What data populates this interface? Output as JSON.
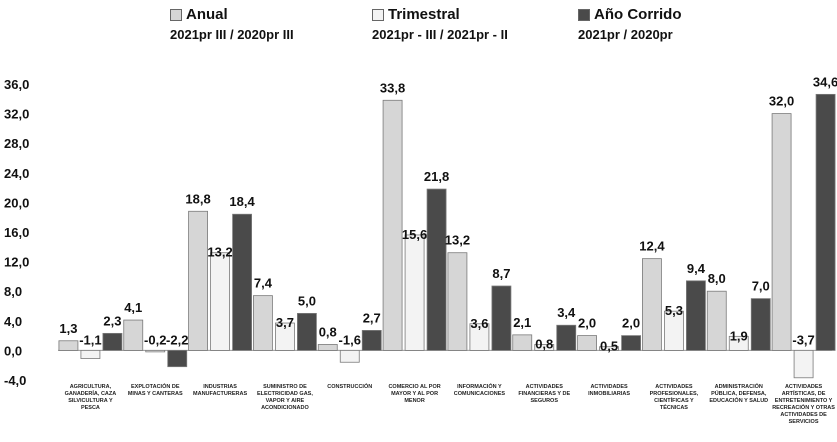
{
  "chart_data": {
    "type": "bar",
    "ylim": [
      -4,
      36
    ],
    "yticks": [
      "36,0",
      "32,0",
      "28,0",
      "24,0",
      "20,0",
      "16,0",
      "12,0",
      "8,0",
      "4,0",
      "0,0",
      "-4,0"
    ],
    "categories": [
      "AGRICULTURA, GANADERÍA, CAZA SILVICULTURA Y PESCA",
      "EXPLOTACIÓN DE MINAS Y CANTERAS",
      "INDUSTRIAS MANUFACTURERAS",
      "SUMINISTRO DE ELECTRICIDAD GAS, VAPOR Y AIRE ACONDICIONADO",
      "CONSTRUCCIÓN",
      "COMERCIO AL POR MAYOR Y AL POR MENOR",
      "INFORMACIÓN Y COMUNICACIONES",
      "ACTIVIDADES FINANCIERAS Y DE SEGUROS",
      "ACTIVIDADES INMOBILIARIAS",
      "ACTIVIDADES PROFESIONALES, CIENTÍFICAS Y TÉCNICAS",
      "ADMINISTRACIÓN PÚBLICA, DEFENSA, EDUCACIÓN Y SALUD",
      "ACTIVIDADES ARTÍSTICAS, DE ENTRETENIMIENTO Y RECREACIÓN Y OTRAS ACTIVIDADES DE SERVICIOS"
    ],
    "series": [
      {
        "name": "Anual",
        "period": "2021pr III / 2020pr III",
        "values": [
          1.3,
          4.1,
          18.8,
          7.4,
          0.8,
          33.8,
          13.2,
          2.1,
          2.0,
          12.4,
          8.0,
          32.0
        ],
        "labels": [
          "1,3",
          "4,1",
          "18,8",
          "7,4",
          "0,8",
          "33,8",
          "13,2",
          "2,1",
          "2,0",
          "12,4",
          "8,0",
          "32,0"
        ]
      },
      {
        "name": "Trimestral",
        "period": "2021pr - III / 2021pr - II",
        "values": [
          -1.1,
          -0.2,
          13.2,
          3.7,
          -1.6,
          15.6,
          3.6,
          0.8,
          0.5,
          5.3,
          1.9,
          -3.7
        ],
        "labels": [
          "-1,1",
          "-0,2",
          "13,2",
          "3,7",
          "-1,6",
          "15,6",
          "3,6",
          "0,8",
          "0,5",
          "5,3",
          "1,9",
          "-3,7"
        ]
      },
      {
        "name": "Año Corrido",
        "period": "2021pr / 2020pr",
        "values": [
          2.3,
          -2.2,
          18.4,
          5.0,
          2.7,
          21.8,
          8.7,
          3.4,
          2.0,
          9.4,
          7.0,
          34.6
        ],
        "labels": [
          "2,3",
          "-2,2",
          "18,4",
          "5,0",
          "2,7",
          "21,8",
          "8,7",
          "3,4",
          "2,0",
          "9,4",
          "7,0",
          "34,6"
        ]
      }
    ],
    "colors": {
      "anual": "#d6d6d6",
      "trimestral": "#f3f3f3",
      "corrido": "#4a4a4a",
      "border": "#7a7a7a"
    },
    "grid": false,
    "legend_position": "top"
  },
  "legend": [
    {
      "name": "Anual",
      "period": "2021pr III / 2020pr III",
      "color": "#d6d6d6"
    },
    {
      "name": "Trimestral",
      "period": "2021pr - III / 2021pr - II",
      "color": "#f3f3f3"
    },
    {
      "name": "Año Corrido",
      "period": "2021pr / 2020pr",
      "color": "#4a4a4a"
    }
  ]
}
